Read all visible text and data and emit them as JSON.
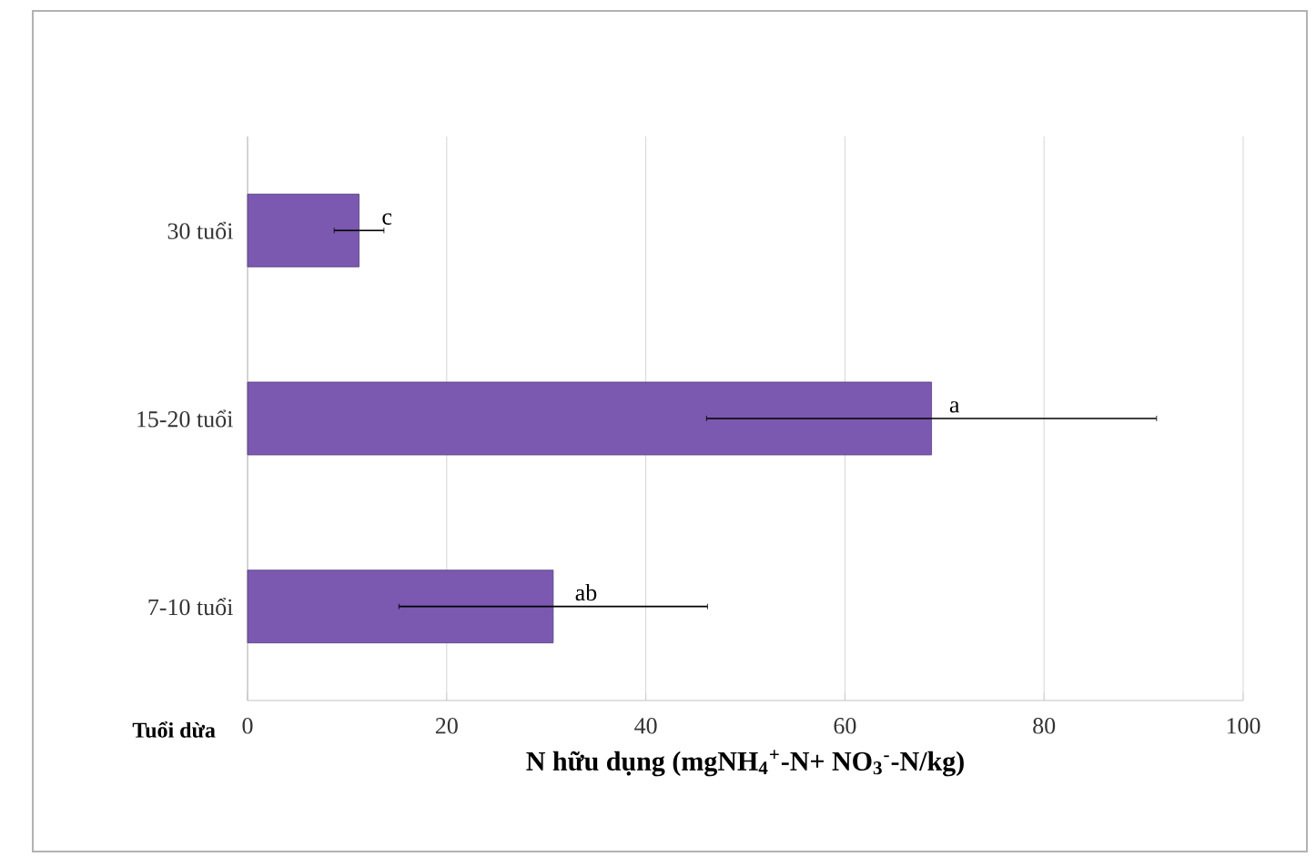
{
  "chart_data": {
    "type": "bar",
    "orientation": "horizontal",
    "categories": [
      "30 tuổi",
      "15-20 tuổi",
      "7-10 tuổi"
    ],
    "values": [
      11.2,
      68.7,
      30.7
    ],
    "errors": [
      2.5,
      22.6,
      15.5
    ],
    "color": "#7b59b0",
    "xlim": [
      0,
      100
    ],
    "xticks": [
      0,
      20,
      40,
      60,
      80,
      100
    ],
    "grid": "x",
    "xlabel": "N hữu dụng (mgNH$_{4}$$^{+}$-N+ NO$_{3}$$^{-}$-N/kg)",
    "ylabel": "Tuổi dừa",
    "annotations": [
      {
        "text": "c",
        "x": 14,
        "y": "30 tuổi"
      },
      {
        "text": "a",
        "x": 71,
        "y": "15-20 tuổi"
      },
      {
        "text": "ab",
        "x": 34,
        "y": "7-10 tuổi"
      }
    ]
  }
}
